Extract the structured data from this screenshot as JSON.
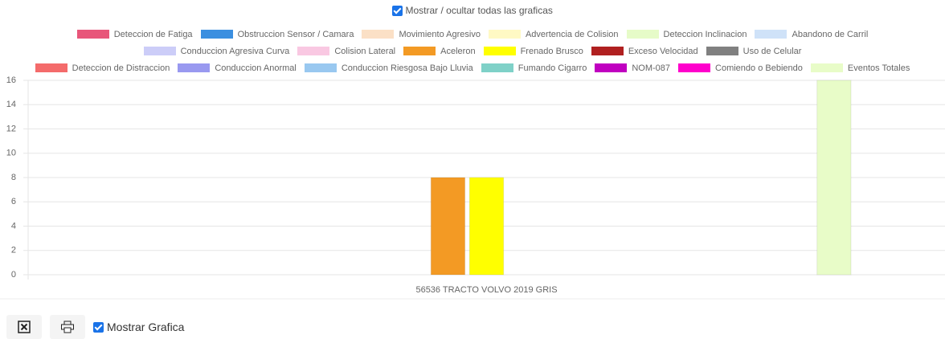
{
  "controls": {
    "toggle_all": "Mostrar / ocultar todas las graficas"
  },
  "chart_data": {
    "type": "bar",
    "categories": [
      "56536 TRACTO VOLVO 2019 GRIS"
    ],
    "series": [
      {
        "name": "Deteccion de Fatiga",
        "color": "#e8567a",
        "values": [
          0
        ]
      },
      {
        "name": "Obstruccion Sensor / Camara",
        "color": "#3b8fe0",
        "values": [
          0
        ]
      },
      {
        "name": "Movimiento Agresivo",
        "color": "#fbe0c6",
        "values": [
          0
        ]
      },
      {
        "name": "Advertencia de Colision",
        "color": "#fff9c4",
        "values": [
          0
        ]
      },
      {
        "name": "Deteccion Inclinacion",
        "color": "#e6fbc8",
        "values": [
          0
        ]
      },
      {
        "name": "Abandono de Carril",
        "color": "#cfe2f8",
        "values": [
          0
        ]
      },
      {
        "name": "Conduccion Agresiva Curva",
        "color": "#cccdf8",
        "values": [
          0
        ]
      },
      {
        "name": "Colision Lateral",
        "color": "#f9c8e2",
        "values": [
          0
        ]
      },
      {
        "name": "Aceleron",
        "color": "#f39a24",
        "values": [
          8
        ]
      },
      {
        "name": "Frenado Brusco",
        "color": "#ffff00",
        "values": [
          8
        ]
      },
      {
        "name": "Exceso Velocidad",
        "color": "#b02020",
        "values": [
          0
        ]
      },
      {
        "name": "Uso de Celular",
        "color": "#808080",
        "values": [
          0
        ]
      },
      {
        "name": "Deteccion de Distraccion",
        "color": "#f46b6b",
        "values": [
          0
        ]
      },
      {
        "name": "Conduccion Anormal",
        "color": "#9999f0",
        "values": [
          0
        ]
      },
      {
        "name": "Conduccion Riesgosa Bajo Lluvia",
        "color": "#99c8f0",
        "values": [
          0
        ]
      },
      {
        "name": "Fumando Cigarro",
        "color": "#7fd1c8",
        "values": [
          0
        ]
      },
      {
        "name": "NOM-087",
        "color": "#c000c0",
        "values": [
          0
        ]
      },
      {
        "name": "Comiendo o Bebiendo",
        "color": "#ff00cc",
        "values": [
          0
        ]
      },
      {
        "name": "Eventos Totales",
        "color": "#e8fcc8",
        "values": [
          16
        ]
      }
    ],
    "ylim": [
      0,
      16
    ],
    "yticks": [
      0,
      2,
      4,
      6,
      8,
      10,
      12,
      14,
      16
    ],
    "grid": true
  },
  "footer": {
    "show_chart": "Mostrar Grafica"
  }
}
